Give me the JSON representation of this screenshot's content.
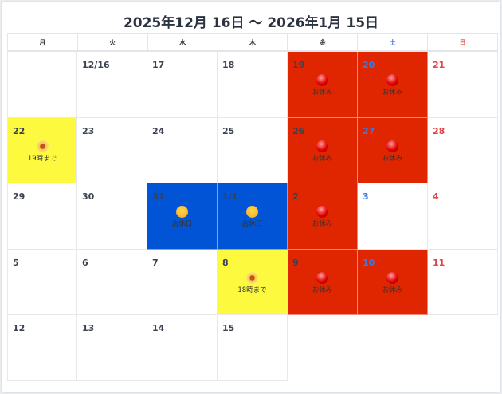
{
  "title": "2025年12月 16日 〜 2026年1月 15日",
  "weekdays": [
    "月",
    "火",
    "水",
    "木",
    "金",
    "土",
    "日"
  ],
  "colors": {
    "holiday": "#e02600",
    "short_hours": "#fdf93f",
    "closed": "#0254d6"
  },
  "weeks": [
    [
      {
        "day": ""
      },
      {
        "day": "12/16"
      },
      {
        "day": "17"
      },
      {
        "day": "18"
      },
      {
        "day": "19",
        "type": "red",
        "icon": "red-ball-icon",
        "label": "お休み"
      },
      {
        "day": "20",
        "type": "red",
        "icon": "red-ball-icon",
        "label": "お休み"
      },
      {
        "day": "21"
      }
    ],
    [
      {
        "day": "22",
        "type": "yellow",
        "icon": "flower-icon",
        "label": "19時まで"
      },
      {
        "day": "23"
      },
      {
        "day": "24"
      },
      {
        "day": "25"
      },
      {
        "day": "26",
        "type": "red",
        "icon": "red-ball-icon",
        "label": "お休み"
      },
      {
        "day": "27",
        "type": "red",
        "icon": "red-ball-icon",
        "label": "お休み"
      },
      {
        "day": "28"
      }
    ],
    [
      {
        "day": "29"
      },
      {
        "day": "30"
      },
      {
        "day": "31",
        "type": "blue",
        "icon": "sleeping-face-icon",
        "label": "店休日"
      },
      {
        "day": "1/1",
        "type": "blue",
        "icon": "sleeping-face-icon",
        "label": "店休日"
      },
      {
        "day": "2",
        "type": "red",
        "icon": "red-ball-icon",
        "label": "お休み"
      },
      {
        "day": "3"
      },
      {
        "day": "4"
      }
    ],
    [
      {
        "day": "5"
      },
      {
        "day": "6"
      },
      {
        "day": "7"
      },
      {
        "day": "8",
        "type": "yellow",
        "icon": "flower-icon",
        "label": "18時まで"
      },
      {
        "day": "9",
        "type": "red",
        "icon": "red-ball-icon",
        "label": "お休み"
      },
      {
        "day": "10",
        "type": "red",
        "icon": "red-ball-icon",
        "label": "お休み"
      },
      {
        "day": "11"
      }
    ],
    [
      {
        "day": "12"
      },
      {
        "day": "13"
      },
      {
        "day": "14"
      },
      {
        "day": "15"
      }
    ]
  ]
}
